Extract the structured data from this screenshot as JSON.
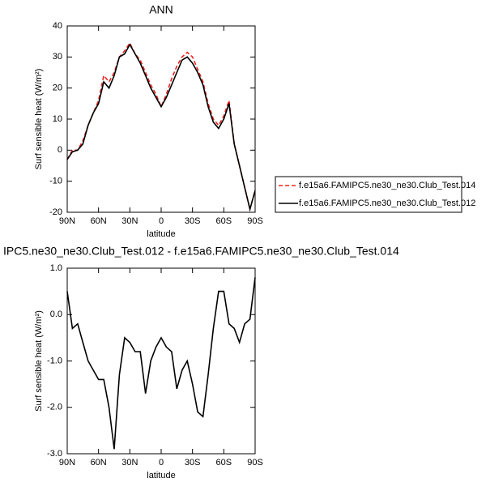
{
  "chart_data": [
    {
      "type": "line",
      "title": "ANN",
      "x_label": "latitude",
      "y_label": "Surf sensible heat (W/m²)",
      "x": [
        90,
        85,
        80,
        75,
        70,
        65,
        60,
        55,
        50,
        45,
        40,
        35,
        30,
        25,
        20,
        15,
        10,
        5,
        0,
        -5,
        -10,
        -15,
        -20,
        -25,
        -30,
        -35,
        -40,
        -45,
        -50,
        -55,
        -60,
        -65,
        -70,
        -75,
        -80,
        -85,
        -90
      ],
      "xlim": [
        90,
        -90
      ],
      "xticks": [
        {
          "value": 90,
          "label": "90N"
        },
        {
          "value": 60,
          "label": "60N"
        },
        {
          "value": 30,
          "label": "30N"
        },
        0,
        {
          "value": -30,
          "label": "30S"
        },
        {
          "value": -60,
          "label": "60S"
        },
        {
          "value": -90,
          "label": "90S"
        }
      ],
      "ylim": [
        -20,
        40
      ],
      "yticks": [
        -20,
        -10,
        0,
        10,
        20,
        30,
        40
      ],
      "legend": "right",
      "series": [
        {
          "name": "f.e15a6.FAMIPC5.ne30_ne30.Club_Test.014",
          "color": "#e8231f",
          "line_style": "dashed",
          "values": [
            -3,
            0,
            0,
            3,
            8,
            12,
            16,
            24,
            22,
            25,
            30,
            32,
            34.5,
            31,
            29,
            25,
            21,
            18,
            14,
            18,
            23,
            27,
            30,
            31.5,
            30,
            26,
            22,
            15,
            10,
            8,
            11,
            16,
            2,
            -5,
            -12,
            -19,
            -13
          ]
        },
        {
          "name": "f.e15a6.FAMIPC5.ne30_ne30.Club_Test.012",
          "color": "#000000",
          "line_style": "solid",
          "values": [
            -3,
            -0.5,
            0,
            2,
            8,
            12,
            15,
            22,
            20,
            24,
            30,
            31,
            34,
            31,
            28,
            24,
            20,
            17,
            14,
            17,
            21,
            25,
            29,
            30,
            28,
            25,
            21,
            14,
            9,
            7,
            10,
            15,
            2,
            -5,
            -12,
            -19,
            -13
          ]
        }
      ]
    },
    {
      "type": "line",
      "title": "IPC5.ne30_ne30.Club_Test.012 - f.e15a6.FAMIPC5.ne30_ne30.Club_Test.014",
      "x_label": "latitude",
      "y_label": "Surf sensible heat (W/m²)",
      "x": [
        90,
        85,
        80,
        75,
        70,
        65,
        60,
        55,
        50,
        45,
        40,
        35,
        30,
        25,
        20,
        15,
        10,
        5,
        0,
        -5,
        -10,
        -15,
        -20,
        -25,
        -30,
        -35,
        -40,
        -45,
        -50,
        -55,
        -60,
        -65,
        -70,
        -75,
        -80,
        -85,
        -90
      ],
      "xlim": [
        90,
        -90
      ],
      "xticks": [
        {
          "value": 90,
          "label": "90N"
        },
        {
          "value": 60,
          "label": "60N"
        },
        {
          "value": 30,
          "label": "30N"
        },
        0,
        {
          "value": -30,
          "label": "30S"
        },
        {
          "value": -60,
          "label": "60S"
        },
        {
          "value": -90,
          "label": "90S"
        }
      ],
      "ylim": [
        -3,
        1
      ],
      "yticks": [
        {
          "value": -3,
          "label": "-3.0"
        },
        {
          "value": -2,
          "label": "-2.0"
        },
        {
          "value": -1,
          "label": "-1.0"
        },
        {
          "value": 0,
          "label": "0.0"
        },
        {
          "value": 1,
          "label": "1.0"
        }
      ],
      "color": "#000000",
      "values": [
        0.5,
        -0.3,
        -0.2,
        -0.6,
        -1.0,
        -1.2,
        -1.4,
        -1.4,
        -2.0,
        -2.9,
        -1.3,
        -0.5,
        -0.6,
        -0.8,
        -0.8,
        -1.7,
        -1.0,
        -0.7,
        -0.5,
        -0.7,
        -0.8,
        -1.6,
        -1.2,
        -1.0,
        -1.5,
        -2.1,
        -2.2,
        -1.3,
        -0.3,
        0.5,
        0.5,
        -0.2,
        -0.3,
        -0.6,
        -0.2,
        -0.1,
        0.8
      ]
    }
  ]
}
